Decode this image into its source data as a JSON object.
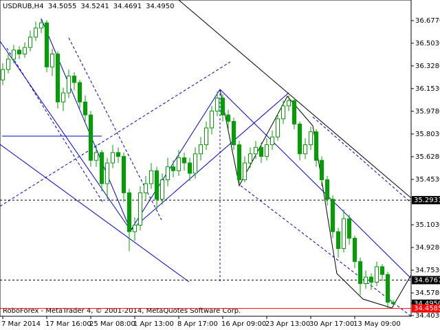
{
  "chart_data": {
    "type": "candlestick",
    "title": "USDRUB,H4",
    "header_values": [
      34.5055,
      34.5241,
      34.4691,
      {
        "value": 34.495,
        "label": "34.4950"
      }
    ],
    "footer": "RoboForex - MetaTrader 4, © 2001-2014, MetaQuotes Software Corp.",
    "categories": [
      "7 Mar 2014",
      null,
      null,
      null,
      null,
      null,
      null,
      null,
      "17 Mar 16:00",
      null,
      null,
      null,
      null,
      null,
      null,
      null,
      "25 Mar 08:00",
      null,
      null,
      null,
      null,
      null,
      null,
      null,
      "1 Apr 13:00",
      null,
      null,
      null,
      null,
      null,
      null,
      null,
      "8 Apr 17:00",
      null,
      null,
      null,
      null,
      null,
      null,
      null,
      "16 Apr 09:00",
      null,
      null,
      null,
      null,
      null,
      null,
      null,
      "23 Apr 13:00",
      null,
      null,
      null,
      null,
      null,
      null,
      null,
      "30 Apr 17:00",
      null,
      null,
      null,
      null,
      null,
      null,
      null,
      "13 May 09:00",
      null,
      null,
      null,
      null,
      null,
      null,
      null
    ],
    "open": [
      36.22,
      36.3,
      36.38,
      36.45,
      36.42,
      36.47,
      36.55,
      36.62,
      36.66,
      36.32,
      36.42,
      36.05,
      36.12,
      36.25,
      36.2,
      36.05,
      35.95,
      35.6,
      35.66,
      35.42,
      35.58,
      35.66,
      35.63,
      35.35,
      35.05,
      35.1,
      35.35,
      35.42,
      35.52,
      35.3,
      35.45,
      35.55,
      35.52,
      35.62,
      35.58,
      35.5,
      35.65,
      35.72,
      35.85,
      35.98,
      36.08,
      35.95,
      35.9,
      35.72,
      35.45,
      35.58,
      35.65,
      35.7,
      35.63,
      35.72,
      35.78,
      35.92,
      36.02,
      36.06,
      35.88,
      35.65,
      35.72,
      35.82,
      35.6,
      35.45,
      35.3,
      35.05,
      34.92,
      35.15,
      35.0,
      34.82,
      34.65,
      34.7,
      34.66,
      34.78,
      34.72,
      34.5055
    ],
    "high": [
      36.35,
      36.42,
      36.49,
      36.48,
      36.51,
      36.6,
      36.67,
      36.69,
      36.68,
      36.46,
      36.44,
      36.16,
      36.3,
      36.28,
      36.22,
      36.1,
      35.98,
      35.72,
      35.68,
      35.62,
      35.72,
      35.7,
      35.66,
      35.38,
      35.16,
      35.4,
      35.48,
      35.58,
      35.55,
      35.5,
      35.62,
      35.6,
      35.68,
      35.66,
      35.62,
      35.7,
      35.78,
      35.9,
      36.02,
      36.13,
      36.11,
      35.99,
      35.93,
      35.75,
      35.63,
      35.7,
      35.75,
      35.74,
      35.77,
      35.83,
      35.96,
      36.06,
      36.1,
      36.08,
      35.9,
      35.77,
      35.86,
      35.84,
      35.63,
      35.48,
      35.33,
      35.08,
      35.22,
      35.18,
      35.02,
      34.85,
      34.75,
      34.73,
      34.82,
      34.8,
      34.74,
      34.5241
    ],
    "low": [
      36.18,
      36.27,
      36.35,
      36.38,
      36.39,
      36.44,
      36.52,
      36.58,
      36.28,
      36.25,
      36.0,
      35.98,
      36.08,
      36.14,
      36.0,
      35.9,
      35.55,
      35.55,
      35.36,
      35.3,
      35.54,
      35.58,
      35.28,
      34.9,
      34.98,
      35.06,
      35.3,
      35.38,
      35.22,
      35.26,
      35.4,
      35.47,
      35.48,
      35.52,
      35.44,
      35.46,
      35.6,
      35.68,
      35.8,
      35.94,
      35.9,
      35.84,
      35.68,
      35.42,
      35.43,
      35.54,
      35.61,
      35.58,
      35.6,
      35.68,
      35.75,
      35.88,
      35.98,
      35.84,
      35.6,
      35.61,
      35.68,
      35.55,
      35.4,
      35.25,
      35.0,
      34.85,
      34.89,
      34.95,
      34.77,
      34.56,
      34.61,
      34.6,
      34.63,
      34.67,
      34.4585,
      34.4691
    ],
    "close": [
      36.3,
      36.38,
      36.45,
      36.42,
      36.47,
      36.55,
      36.62,
      36.66,
      36.32,
      36.42,
      36.05,
      36.12,
      36.25,
      36.2,
      36.05,
      35.95,
      35.6,
      35.66,
      35.42,
      35.58,
      35.66,
      35.63,
      35.35,
      35.05,
      35.1,
      35.35,
      35.42,
      35.52,
      35.3,
      35.45,
      35.55,
      35.52,
      35.62,
      35.58,
      35.5,
      35.65,
      35.72,
      35.85,
      35.98,
      36.08,
      35.95,
      35.9,
      35.72,
      35.45,
      35.58,
      35.65,
      35.7,
      35.63,
      35.72,
      35.78,
      35.92,
      36.02,
      36.06,
      35.88,
      35.65,
      35.72,
      35.82,
      35.6,
      35.45,
      35.3,
      35.05,
      34.92,
      35.15,
      35.0,
      34.82,
      34.65,
      34.7,
      34.66,
      34.78,
      34.72,
      34.5055,
      34.495
    ],
    "up_color": "#ffffff",
    "down_color": "#00a000",
    "wick_color": "#00a000",
    "ylim": [
      34.398,
      36.836
    ],
    "yticks": [
      {
        "value": 36.677,
        "label": "36.6770"
      },
      {
        "value": 36.503,
        "label": "36.5030"
      },
      {
        "value": 36.328,
        "label": "36.3280"
      },
      {
        "value": 36.153,
        "label": "36.1530"
      },
      {
        "value": 35.978,
        "label": "35.9780"
      },
      {
        "value": 35.803,
        "label": "35.8030"
      },
      {
        "value": 35.628,
        "label": "35.6280"
      },
      {
        "value": 35.453,
        "label": "35.4530"
      },
      {
        "value": 35.103,
        "label": "35.1030"
      },
      {
        "value": 34.928,
        "label": "34.9280"
      },
      {
        "value": 34.753,
        "label": "34.7530"
      },
      {
        "value": 34.578,
        "label": "34.5780"
      },
      {
        "value": 34.403,
        "label": "34.4030"
      }
    ],
    "levels": [
      35.2931,
      34.6767
    ],
    "current_price": {
      "value": 34.495,
      "label": "34.4950"
    },
    "low_line": 34.4585,
    "low_line_color": "#ff0000"
  }
}
